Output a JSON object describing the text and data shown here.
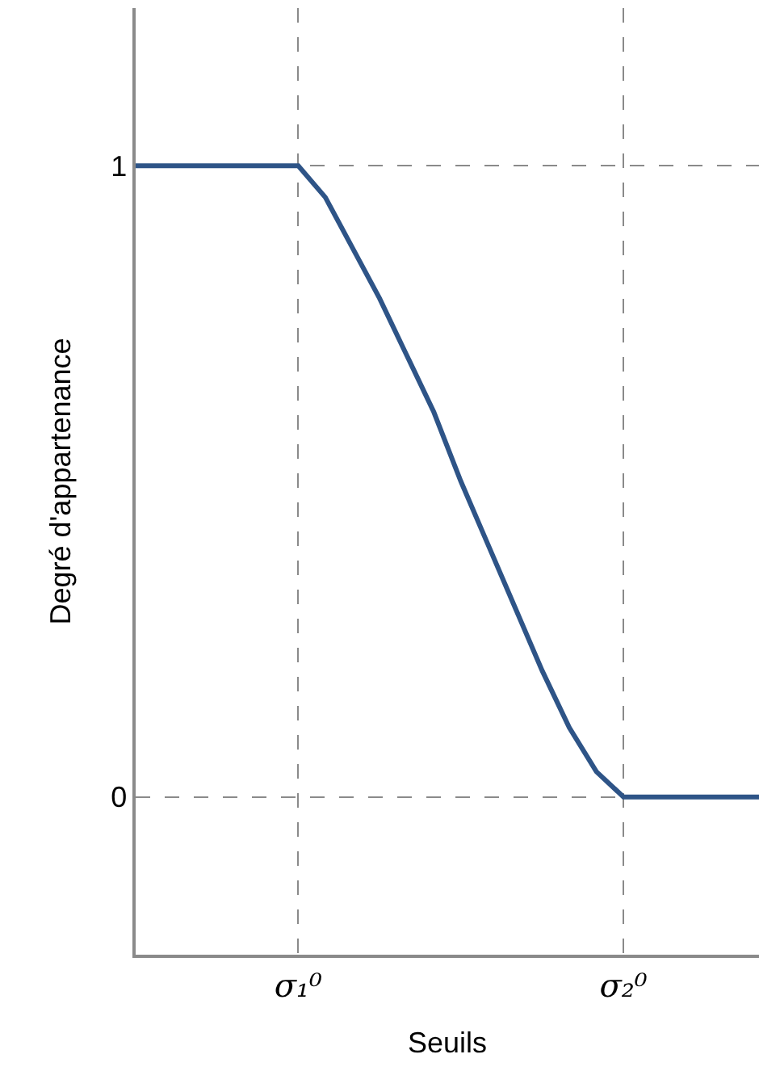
{
  "chart_data": {
    "type": "line",
    "xlabel": "Seuils",
    "ylabel": "Degré d'appartenance",
    "categories": [
      null,
      null,
      null,
      null,
      null,
      null,
      "σ₁⁰",
      null,
      null,
      null,
      null,
      null,
      null,
      null,
      null,
      null,
      null,
      null,
      "σ₂⁰",
      null,
      null,
      null,
      null,
      null
    ],
    "series": [
      {
        "color": "#2e5487",
        "values": [
          1,
          1,
          1,
          1,
          1,
          1,
          1,
          0.95,
          0.87,
          0.79,
          0.7,
          0.61,
          0.5,
          0.4,
          0.3,
          0.2,
          0.11,
          0.04,
          0,
          0,
          0,
          0,
          0,
          0
        ]
      }
    ],
    "ylim": [
      -0.25,
      1.25
    ],
    "yticks": [
      0,
      1
    ],
    "grid": true,
    "line_style": "solid",
    "marker": "none"
  }
}
